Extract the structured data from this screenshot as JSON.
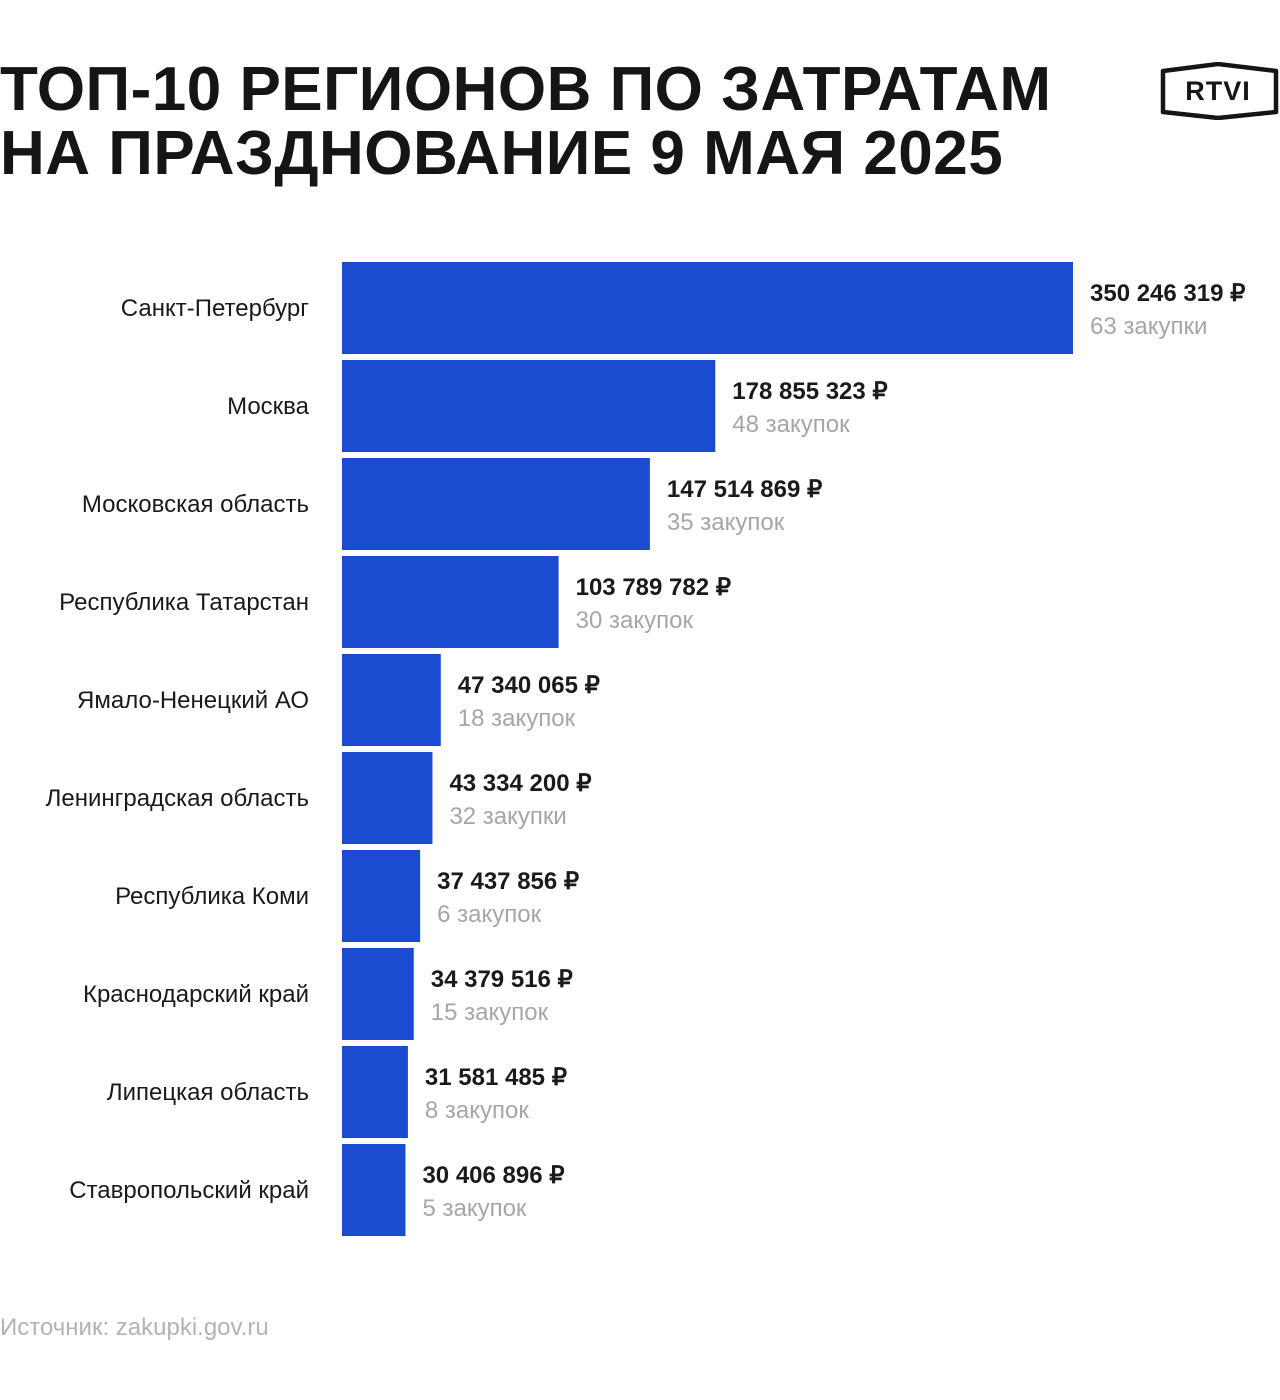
{
  "title": {
    "line1": "ТОП-10 РЕГИОНОВ ПО ЗАТРАТАМ",
    "line2": "НА ПРАЗДНОВАНИЕ 9 МАЯ 2025"
  },
  "logo": {
    "text": "RTVI"
  },
  "colors": {
    "bar": "#1a4bd0",
    "value_text": "#1a1a1a",
    "count_text": "#a6a6a6"
  },
  "chart_data": {
    "type": "bar",
    "orientation": "horizontal",
    "categories": [
      "Санкт-Петербург",
      "Москва",
      "Московская область",
      "Республика Татарстан",
      "Ямало-Ненецкий АО",
      "Ленинградская область",
      "Республика Коми",
      "Краснодарский край",
      "Липецкая область",
      "Ставропольский край"
    ],
    "values": [
      350246319,
      178855323,
      147514869,
      103789782,
      47340065,
      43334200,
      37437856,
      34379516,
      31581485,
      30406896
    ],
    "value_labels": [
      "350 246 319 ₽",
      "178 855 323 ₽",
      "147 514 869 ₽",
      "103 789 782 ₽",
      "47 340 065 ₽",
      "43 334 200 ₽",
      "37 437 856 ₽",
      "34 379 516 ₽",
      "31 581 485 ₽",
      "30 406 896 ₽"
    ],
    "purchase_labels": [
      "63 закупки",
      "48 закупок",
      "35 закупок",
      "30 закупок",
      "18 закупок",
      "32 закупки",
      "6 закупок",
      "15 закупок",
      "8 закупок",
      "5 закупок"
    ],
    "xlim": [
      0,
      350246319
    ],
    "grid": false,
    "legend": "none"
  },
  "source": "Источник: zakupki.gov.ru"
}
